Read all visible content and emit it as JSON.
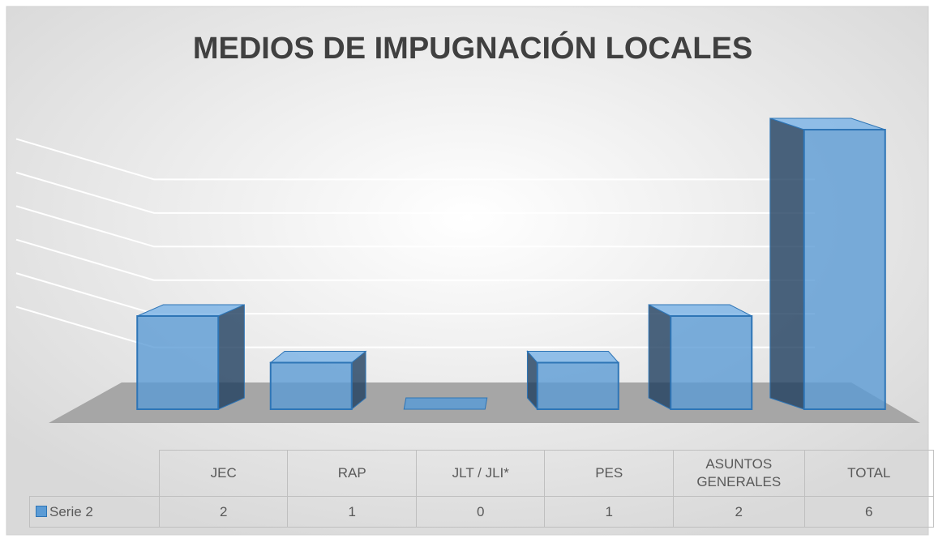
{
  "chart_data": {
    "type": "bar3d",
    "title": "MEDIOS DE IMPUGNACIÓN LOCALES",
    "categories": [
      "JEC",
      "RAP",
      "JLT / JLI*",
      "PES",
      "ASUNTOS GENERALES",
      "TOTAL"
    ],
    "series": [
      {
        "name": "Serie 2",
        "color": "#5b9bd5",
        "values": [
          2,
          1,
          0,
          1,
          2,
          6
        ]
      }
    ],
    "ylim": [
      0,
      7
    ],
    "yticks": [
      1,
      2,
      3,
      4,
      5,
      6
    ],
    "grid": true
  }
}
